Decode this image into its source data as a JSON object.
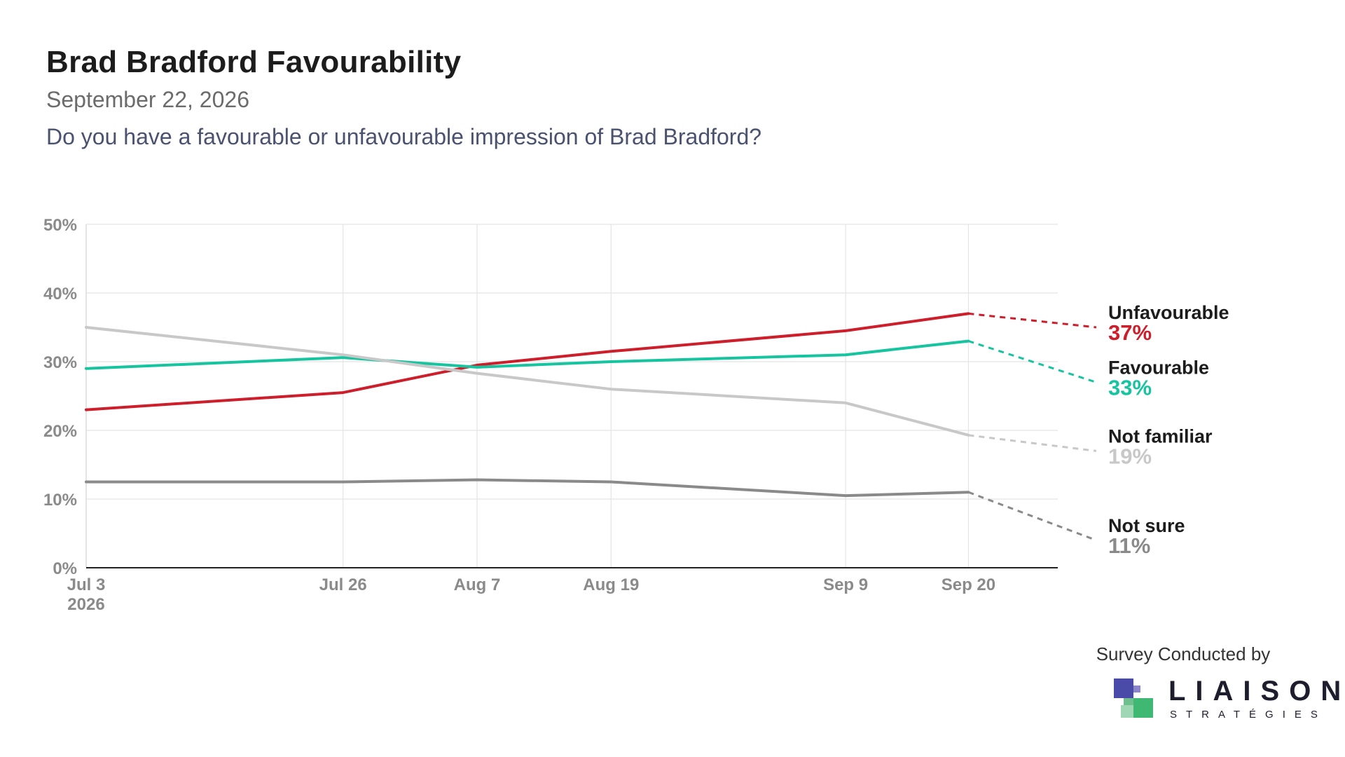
{
  "header": {
    "title": "Brad Bradford Favourability",
    "date": "September 22, 2026",
    "question": "Do you have a favourable or unfavourable impression of Brad Bradford?"
  },
  "footer": {
    "credit": "Survey Conducted by",
    "logo_name": "LIAISON",
    "logo_sub": "STRATÉGIES"
  },
  "chart_data": {
    "type": "line",
    "title": "Brad Bradford Favourability",
    "subtitle": "September 22, 2026",
    "xlabel": "",
    "ylabel": "",
    "x_ticks": [
      {
        "date": "2026-07-03",
        "label": [
          "Jul 3",
          "2026"
        ]
      },
      {
        "date": "2026-07-26",
        "label": [
          "Jul 26"
        ]
      },
      {
        "date": "2026-08-07",
        "label": [
          "Aug 7"
        ]
      },
      {
        "date": "2026-08-19",
        "label": [
          "Aug 19"
        ]
      },
      {
        "date": "2026-09-09",
        "label": [
          "Sep 9"
        ]
      },
      {
        "date": "2026-09-20",
        "label": [
          "Sep 20"
        ]
      }
    ],
    "x": [
      "2026-07-03",
      "2026-07-26",
      "2026-08-07",
      "2026-08-19",
      "2026-09-09",
      "2026-09-20"
    ],
    "xlim": [
      "2026-07-03",
      "2026-09-28"
    ],
    "ylim": [
      0,
      50
    ],
    "y_ticks": [
      0,
      10,
      20,
      30,
      40,
      50
    ],
    "y_tick_labels": [
      "0%",
      "10%",
      "20%",
      "30%",
      "40%",
      "50%"
    ],
    "grid": true,
    "legend": "right, end-of-line labels",
    "projection_date": "2026-09-22",
    "series": [
      {
        "name": "Unfavourable",
        "label": "37%",
        "color": "#cc1f2b",
        "label_color": "#cc1f2b",
        "values": [
          23,
          25.5,
          29.5,
          31.5,
          34.5,
          37
        ],
        "final": 35
      },
      {
        "name": "Favourable",
        "label": "33%",
        "color": "#16c4a0",
        "label_color": "#16c4a0",
        "values": [
          29,
          30.6,
          29.2,
          30,
          31,
          33
        ],
        "final": 27
      },
      {
        "name": "Not familiar",
        "label": "19%",
        "color": "#c8c8c8",
        "label_color": "#c8c8c8",
        "values": [
          35,
          31,
          28.3,
          26,
          24,
          19.3
        ],
        "final": 17
      },
      {
        "name": "Not sure",
        "label": "11%",
        "color": "#8a8a8a",
        "label_color": "#8a8a8a",
        "values": [
          12.5,
          12.5,
          12.8,
          12.5,
          10.5,
          11
        ],
        "final": 4
      }
    ]
  }
}
